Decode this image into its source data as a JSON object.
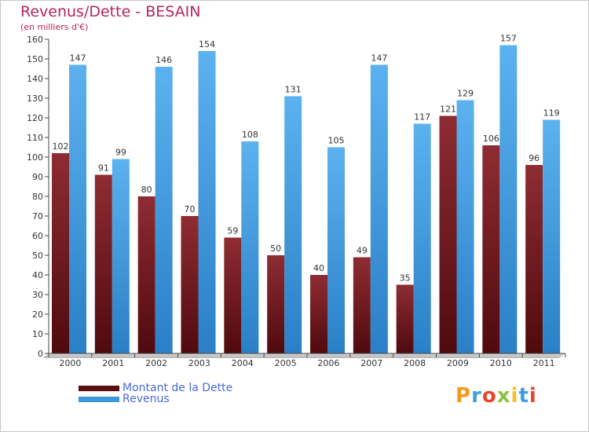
{
  "chart_data": {
    "type": "bar",
    "title": "Revenus/Dette - BESAIN",
    "subtitle": "(en milliers d'€)",
    "categories": [
      "2000",
      "2001",
      "2002",
      "2003",
      "2004",
      "2005",
      "2006",
      "2007",
      "2008",
      "2009",
      "2010",
      "2011"
    ],
    "series": [
      {
        "name": "Montant de la Dette",
        "values": [
          102,
          91,
          80,
          70,
          59,
          50,
          40,
          49,
          35,
          121,
          106,
          96
        ],
        "color": "#7a1e22",
        "colorDark": "#5a0e12"
      },
      {
        "name": "Revenus",
        "values": [
          147,
          99,
          146,
          154,
          108,
          131,
          105,
          147,
          117,
          129,
          157,
          119
        ],
        "color": "#4aa3e6",
        "colorDark": "#2f86cf"
      }
    ],
    "yticks": [
      0,
      10,
      20,
      30,
      40,
      50,
      60,
      70,
      80,
      90,
      100,
      110,
      120,
      130,
      140,
      150,
      160
    ],
    "ylim": [
      0,
      160
    ],
    "grid": false,
    "legend_position": "bottom-left"
  },
  "brand": {
    "text": "Proxiti"
  }
}
